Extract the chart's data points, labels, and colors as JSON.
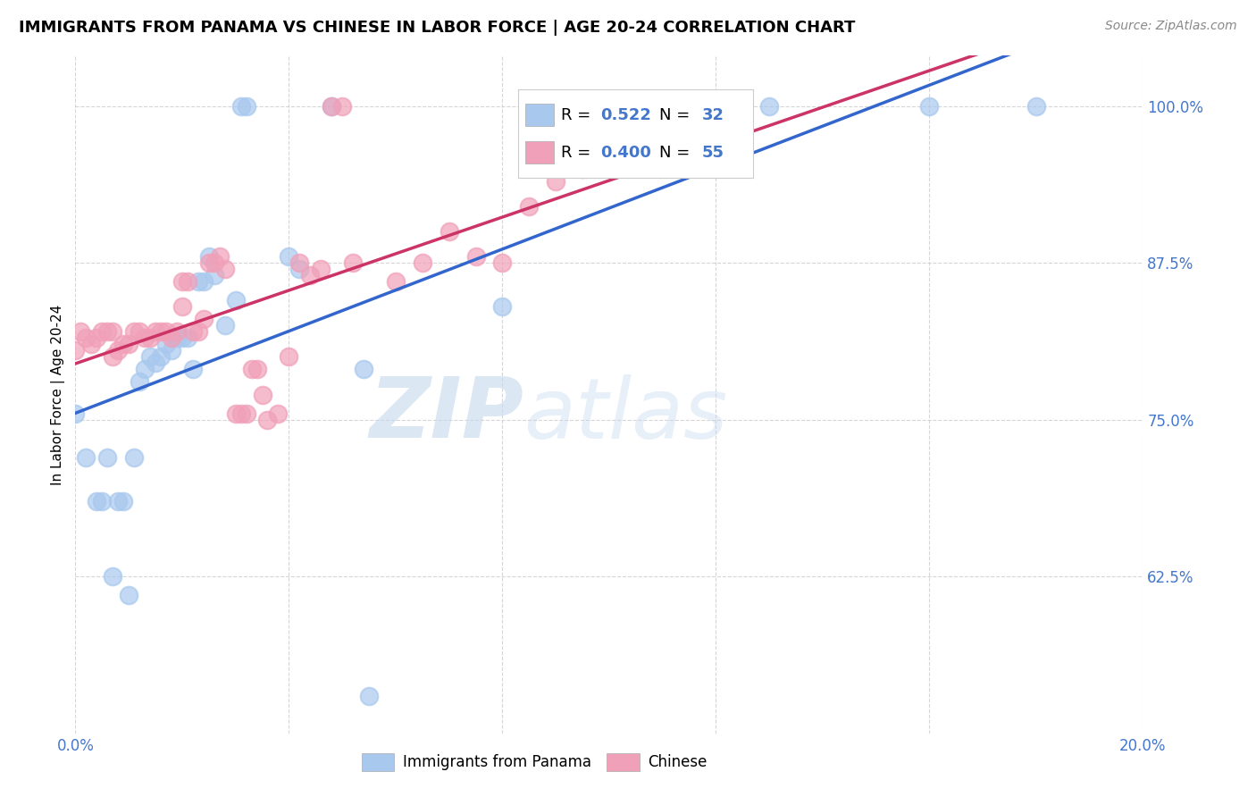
{
  "title": "IMMIGRANTS FROM PANAMA VS CHINESE IN LABOR FORCE | AGE 20-24 CORRELATION CHART",
  "source": "Source: ZipAtlas.com",
  "ylabel": "In Labor Force | Age 20-24",
  "xlim": [
    0.0,
    0.2
  ],
  "ylim": [
    0.5,
    1.04
  ],
  "xticks": [
    0.0,
    0.04,
    0.08,
    0.12,
    0.16,
    0.2
  ],
  "xtick_labels": [
    "0.0%",
    "",
    "",
    "",
    "",
    "20.0%"
  ],
  "yticks": [
    0.625,
    0.75,
    0.875,
    1.0
  ],
  "ytick_labels": [
    "62.5%",
    "75.0%",
    "87.5%",
    "100.0%"
  ],
  "watermark_zip": "ZIP",
  "watermark_atlas": "atlas",
  "blue_color": "#A8C8EE",
  "pink_color": "#F0A0B8",
  "blue_line_color": "#3366CC",
  "pink_line_color": "#CC3366",
  "panama_x": [
    0.0,
    0.002,
    0.004,
    0.005,
    0.006,
    0.007,
    0.008,
    0.009,
    0.01,
    0.011,
    0.012,
    0.013,
    0.014,
    0.015,
    0.016,
    0.017,
    0.018,
    0.019,
    0.02,
    0.021,
    0.022,
    0.023,
    0.024,
    0.025,
    0.026,
    0.028,
    0.03,
    0.031,
    0.032,
    0.04,
    0.042,
    0.048,
    0.054,
    0.055,
    0.08,
    0.13,
    0.16,
    0.18
  ],
  "panama_y": [
    0.755,
    0.72,
    0.685,
    0.685,
    0.72,
    0.625,
    0.685,
    0.685,
    0.61,
    0.72,
    0.78,
    0.79,
    0.8,
    0.795,
    0.8,
    0.81,
    0.805,
    0.815,
    0.815,
    0.815,
    0.79,
    0.86,
    0.86,
    0.88,
    0.865,
    0.825,
    0.845,
    1.0,
    1.0,
    0.88,
    0.87,
    1.0,
    0.79,
    0.53,
    0.84,
    1.0,
    1.0,
    1.0
  ],
  "chinese_x": [
    0.0,
    0.001,
    0.002,
    0.003,
    0.004,
    0.005,
    0.006,
    0.007,
    0.007,
    0.008,
    0.009,
    0.01,
    0.011,
    0.012,
    0.013,
    0.014,
    0.015,
    0.016,
    0.017,
    0.018,
    0.019,
    0.02,
    0.02,
    0.021,
    0.022,
    0.023,
    0.024,
    0.025,
    0.026,
    0.027,
    0.028,
    0.03,
    0.031,
    0.032,
    0.033,
    0.034,
    0.035,
    0.036,
    0.038,
    0.04,
    0.042,
    0.044,
    0.046,
    0.048,
    0.05,
    0.052,
    0.06,
    0.065,
    0.07,
    0.075,
    0.08,
    0.085,
    0.09,
    0.095,
    0.1
  ],
  "chinese_y": [
    0.805,
    0.82,
    0.815,
    0.81,
    0.815,
    0.82,
    0.82,
    0.8,
    0.82,
    0.805,
    0.81,
    0.81,
    0.82,
    0.82,
    0.815,
    0.815,
    0.82,
    0.82,
    0.82,
    0.815,
    0.82,
    0.86,
    0.84,
    0.86,
    0.82,
    0.82,
    0.83,
    0.875,
    0.875,
    0.88,
    0.87,
    0.755,
    0.755,
    0.755,
    0.79,
    0.79,
    0.77,
    0.75,
    0.755,
    0.8,
    0.875,
    0.865,
    0.87,
    1.0,
    1.0,
    0.875,
    0.86,
    0.875,
    0.9,
    0.88,
    0.875,
    0.92,
    0.94,
    0.95,
    1.0
  ],
  "grid_color": "#CCCCCC",
  "title_fontsize": 13,
  "tick_fontsize": 12,
  "tick_color": "#4477CC",
  "ylabel_fontsize": 11,
  "source_color": "#888888",
  "legend_fontsize": 13
}
